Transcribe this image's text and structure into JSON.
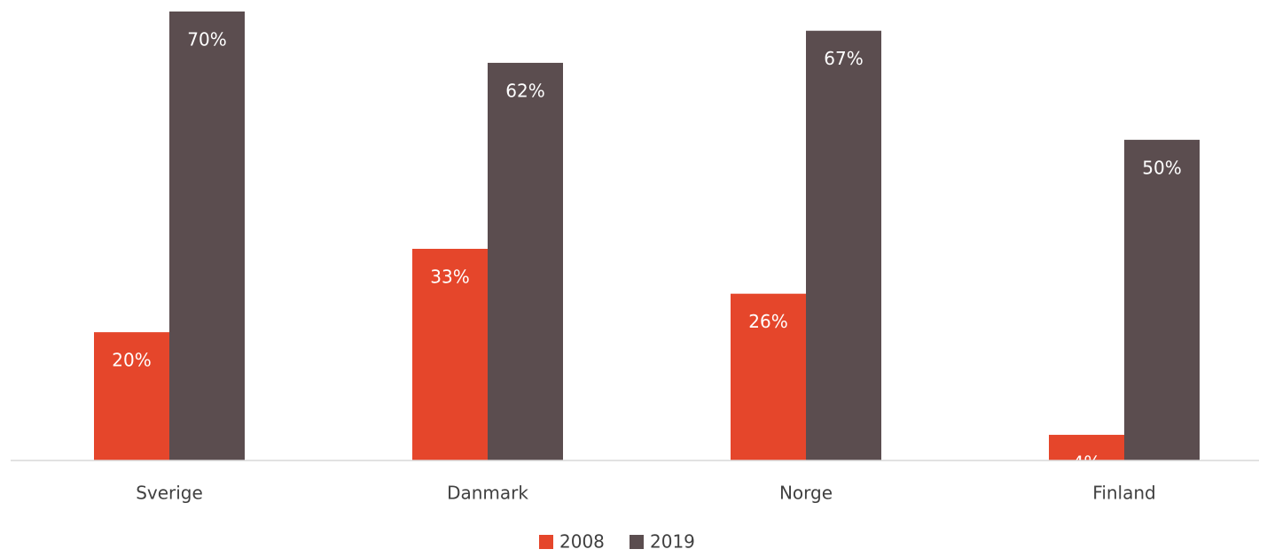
{
  "chart_data": {
    "type": "bar",
    "categories": [
      "Sverige",
      "Danmark",
      "Norge",
      "Finland"
    ],
    "series": [
      {
        "name": "2008",
        "color": "#e5462b",
        "values": [
          20,
          33,
          26,
          4
        ],
        "value_labels": [
          "20%",
          "33%",
          "26%",
          "4%"
        ]
      },
      {
        "name": "2019",
        "color": "#5b4d4f",
        "values": [
          70,
          62,
          67,
          50
        ],
        "value_labels": [
          "70%",
          "62%",
          "67%",
          "50%"
        ]
      }
    ],
    "legend": "bottom"
  }
}
